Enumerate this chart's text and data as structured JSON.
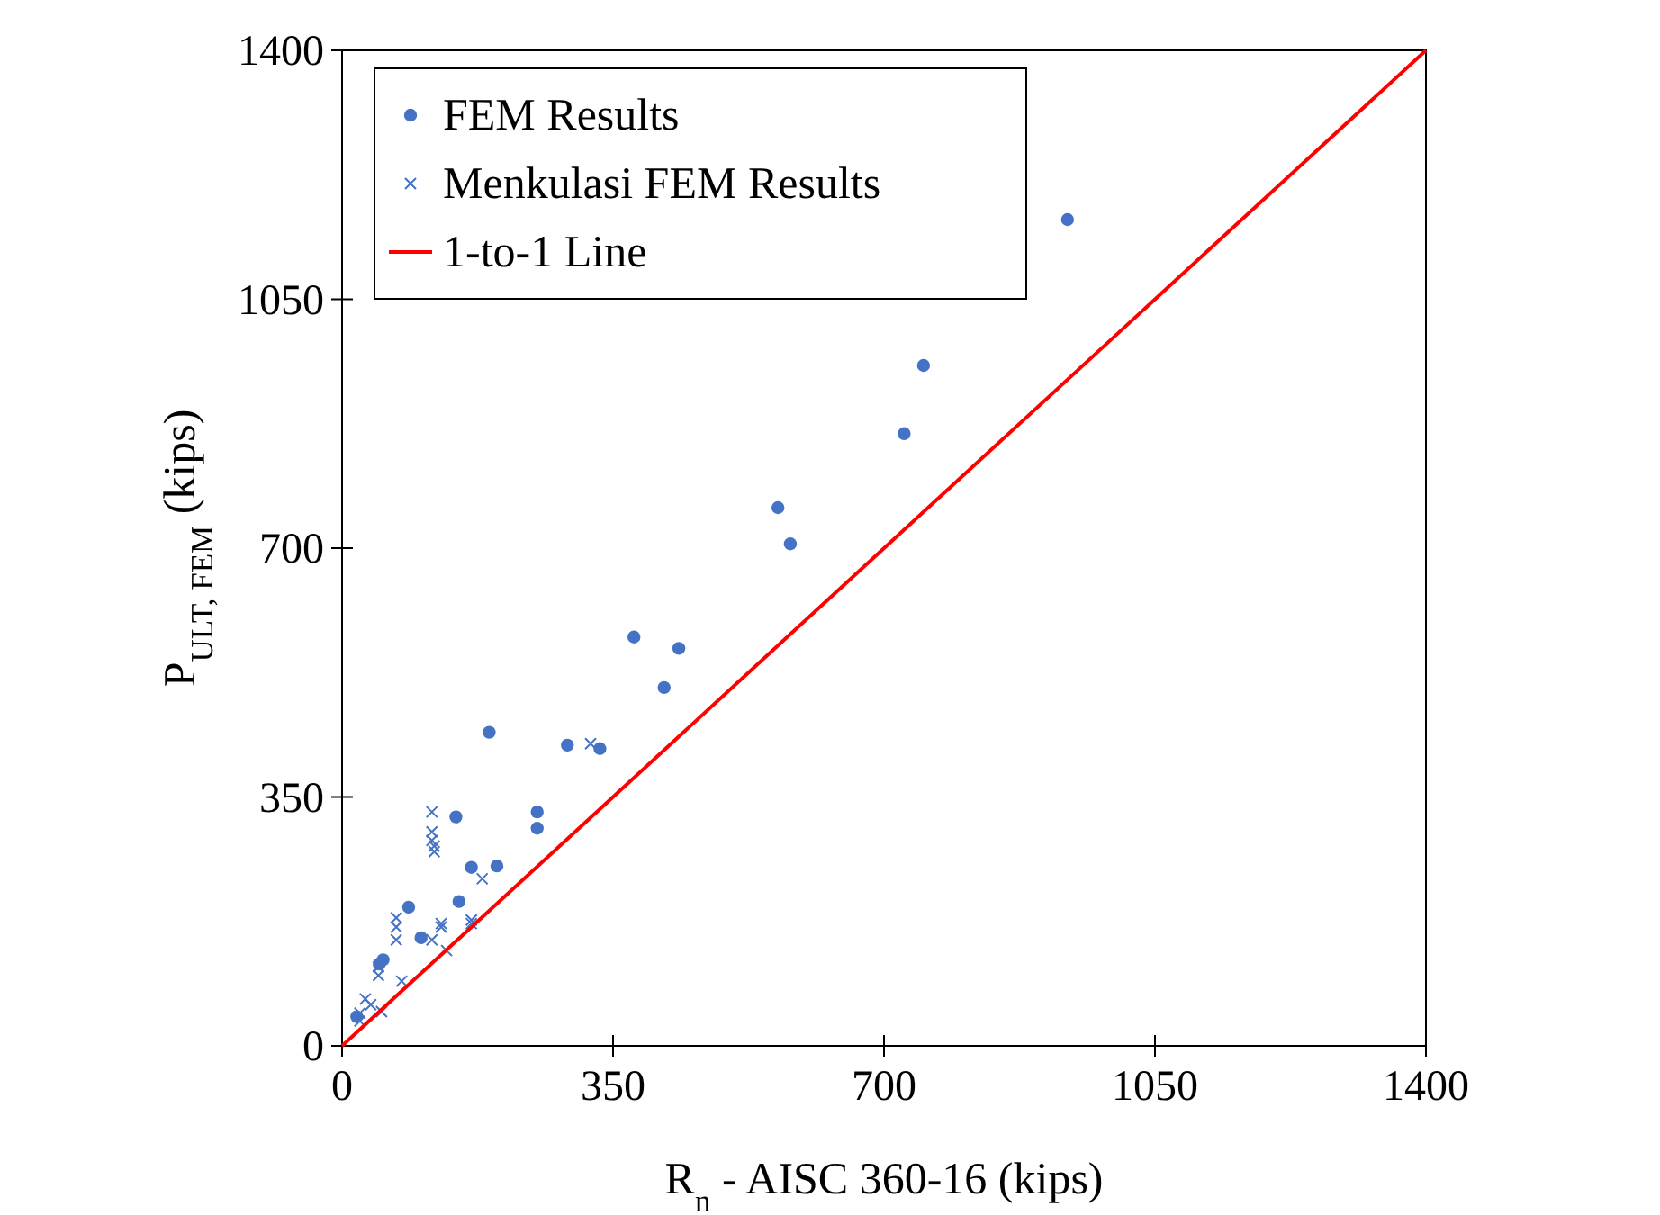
{
  "chart_data": {
    "type": "scatter",
    "xlabel": "R$_{n}$ - AISC 360-16 (kips)",
    "ylabel": "P$_{ULT, FEM}$ (kips)",
    "xlim": [
      0,
      1400
    ],
    "ylim": [
      0,
      1400
    ],
    "xticks": [
      0,
      350,
      700,
      1050,
      1400
    ],
    "yticks": [
      0,
      350,
      700,
      1050,
      1400
    ],
    "grid": false,
    "legend": "top left",
    "series": [
      {
        "name": "FEM Results",
        "marker": "circle",
        "color": "#4472c4",
        "x": [
          19,
          48,
          53,
          86,
          102,
          147,
          151,
          167,
          190,
          200,
          252,
          252,
          291,
          333,
          377,
          416,
          435,
          563,
          579,
          726,
          751,
          937
        ],
        "values": [
          41,
          115,
          121,
          195,
          152,
          322,
          203,
          251,
          441,
          253,
          329,
          306,
          423,
          418,
          575,
          504,
          559,
          757,
          706,
          861,
          957,
          1162
        ]
      },
      {
        "name": "Menkulasi FEM Results",
        "marker": "cross",
        "color": "#4472c4",
        "x": [
          321,
          116,
          116,
          116,
          119,
          119,
          181,
          70,
          70,
          70,
          128,
          128,
          167,
          167,
          116,
          135,
          47,
          47,
          77,
          30,
          37,
          51,
          23,
          23
        ],
        "values": [
          425,
          329,
          301,
          289,
          281,
          273,
          235,
          180,
          167,
          149,
          172,
          167,
          177,
          172,
          149,
          134,
          111,
          99,
          91,
          66,
          58,
          48,
          46,
          35
        ]
      },
      {
        "name": "1-to-1 Line",
        "type": "line",
        "marker": "none",
        "line_style": "solid",
        "color": "#ff0000",
        "x": [
          0,
          1400
        ],
        "values": [
          0,
          1400
        ]
      }
    ]
  }
}
